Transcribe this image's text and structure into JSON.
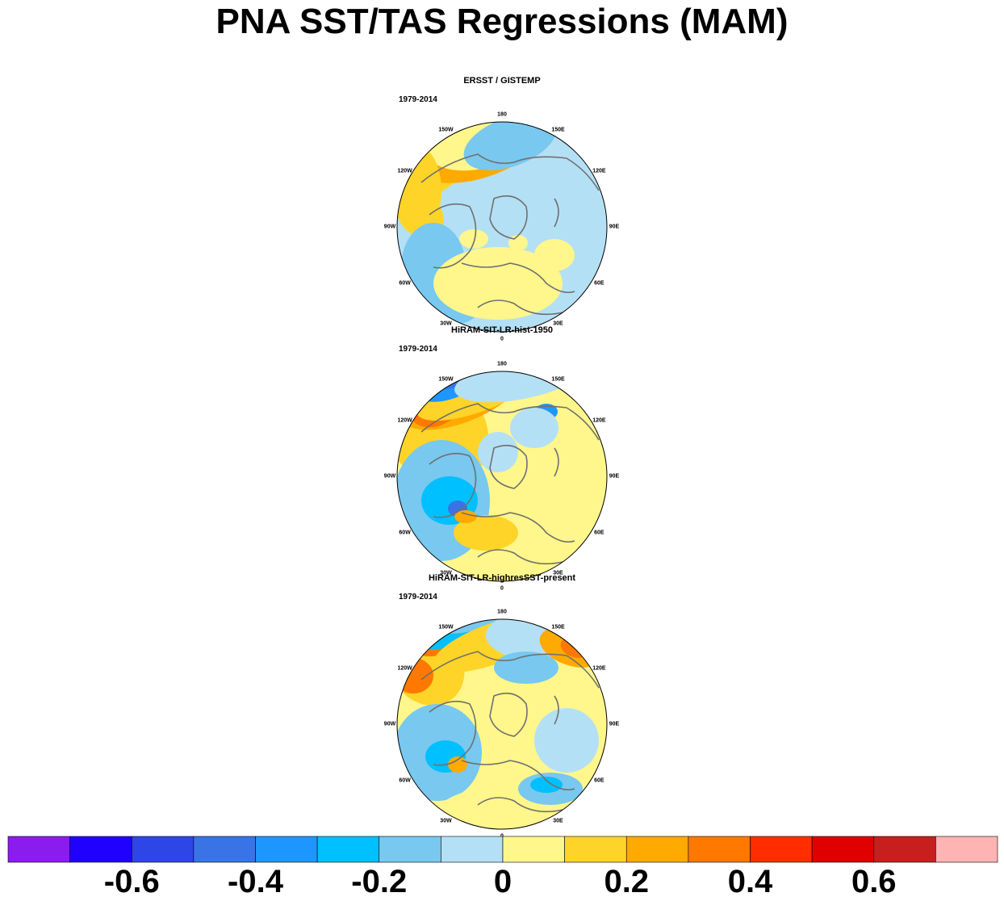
{
  "title": "PNA SST/TAS Regressions (MAM)",
  "panels": [
    {
      "title": "ERSST / GISTEMP",
      "period": "1979-2014"
    },
    {
      "title": "HiRAM-SIT-LR-hist-1950",
      "period": "1979-2014"
    },
    {
      "title": "HiRAM-SIT-LR-highresSST-present",
      "period": "1979-2014"
    }
  ],
  "longitude_labels": [
    "180",
    "150E",
    "120E",
    "90E",
    "60E",
    "30E",
    "0",
    "30W",
    "60W",
    "90W",
    "120W",
    "150W"
  ],
  "chart_data": {
    "type": "heatmap",
    "projection": "north polar stereographic",
    "colorbar": {
      "levels": [
        -0.7,
        -0.6,
        -0.5,
        -0.4,
        -0.3,
        -0.2,
        -0.1,
        0,
        0.1,
        0.2,
        0.3,
        0.4,
        0.5,
        0.6,
        0.7
      ],
      "colors": [
        "#8b1cf0",
        "#2000ff",
        "#2e46e8",
        "#3a73e6",
        "#1e96ff",
        "#00c0ff",
        "#78c8f0",
        "#b4e0f5",
        "#fff68c",
        "#ffd428",
        "#ffaa00",
        "#ff7800",
        "#ff2d00",
        "#e00000",
        "#c81e1e",
        "#ffb4b4"
      ],
      "tick_labels": [
        "-0.6",
        "-0.4",
        "-0.2",
        "0",
        "0.2",
        "0.4",
        "0.6"
      ],
      "tick_values": [
        -0.6,
        -0.4,
        -0.2,
        0,
        0.2,
        0.4,
        0.6
      ]
    }
  }
}
